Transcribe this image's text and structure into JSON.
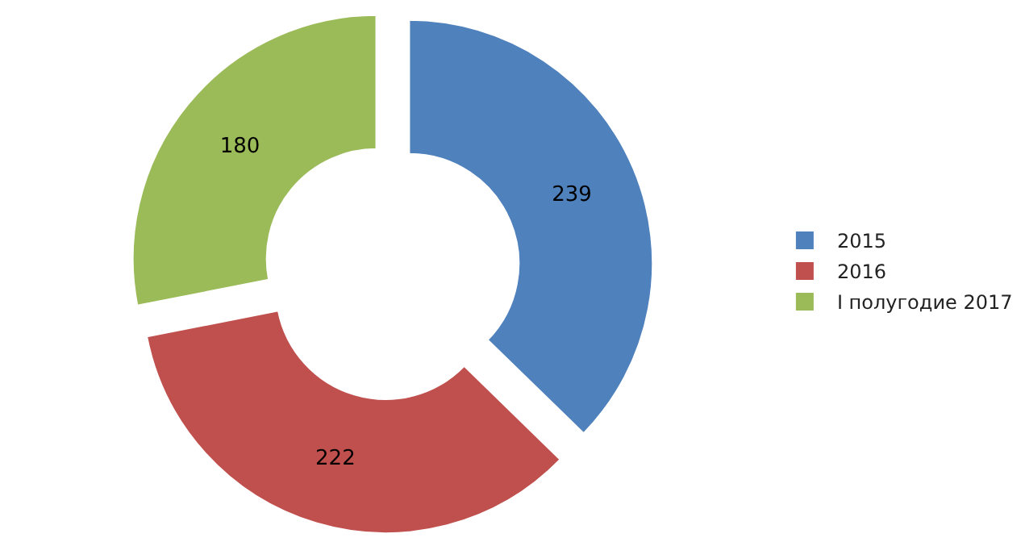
{
  "chart_data": {
    "type": "donut",
    "categories": [
      "2015",
      "2016",
      "I полугодие 2017"
    ],
    "values": [
      239,
      222,
      180
    ],
    "colors": [
      "#4f81bd",
      "#c0504d",
      "#9bbb59"
    ],
    "data_labels": true,
    "legend": "right"
  }
}
